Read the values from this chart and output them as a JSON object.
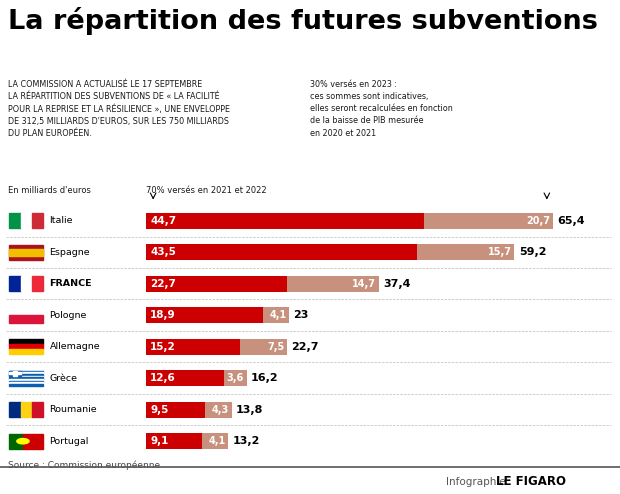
{
  "title": "La répartition des futures subventions",
  "subtitle_left": "LA COMMISSION A ACTUALISÉ LE 17 SEPTEMBRE\nLA RÉPARTITION DES SUBVENTIONS DE « LA FACILITÉ\nPOUR LA REPRISE ET LA RÉSILIENCE », UNE ENVELOPPE\nDE 312,5 MILLIARDS D'EUROS, SUR LES 750 MILLIARDS\nDU PLAN EUROPÉEN.",
  "subtitle_right": "30% versés en 2023 :\nces sommes sont indicatives,\nelles seront recalculées en fonction\nde la baisse de PIB mesurée\nen 2020 et 2021",
  "unit_label": "En milliards d'euros",
  "label_70": "70% versés en 2021 et 2022",
  "source": "Source : Commission européenne",
  "footer_light": "Infographie ",
  "footer_bold": "LE FIGARO",
  "countries": [
    "Italie",
    "Espagne",
    "FRANCE",
    "Pologne",
    "Allemagne",
    "Grèce",
    "Roumanie",
    "Portugal"
  ],
  "val1": [
    44.7,
    43.5,
    22.7,
    18.9,
    15.2,
    12.6,
    9.5,
    9.1
  ],
  "val2": [
    20.7,
    15.7,
    14.7,
    4.1,
    7.5,
    3.6,
    4.3,
    4.1
  ],
  "total": [
    65.4,
    59.2,
    37.4,
    23.0,
    22.7,
    16.2,
    13.8,
    13.2
  ],
  "total_str": [
    "65,4",
    "59,2",
    "37,4",
    "23",
    "22,7",
    "16,2",
    "13,8",
    "13,2"
  ],
  "val1_str": [
    "44,7",
    "43,5",
    "22,7",
    "18,9",
    "15,2",
    "12,6",
    "9,5",
    "9,1"
  ],
  "val2_str": [
    "20,7",
    "15,7",
    "14,7",
    "4,1",
    "7,5",
    "3,6",
    "4,3",
    "4,1"
  ],
  "color_red": "#CC0000",
  "color_salmon": "#C8917E",
  "bg_color": "#FFFFFF",
  "bar_max": 65.4
}
